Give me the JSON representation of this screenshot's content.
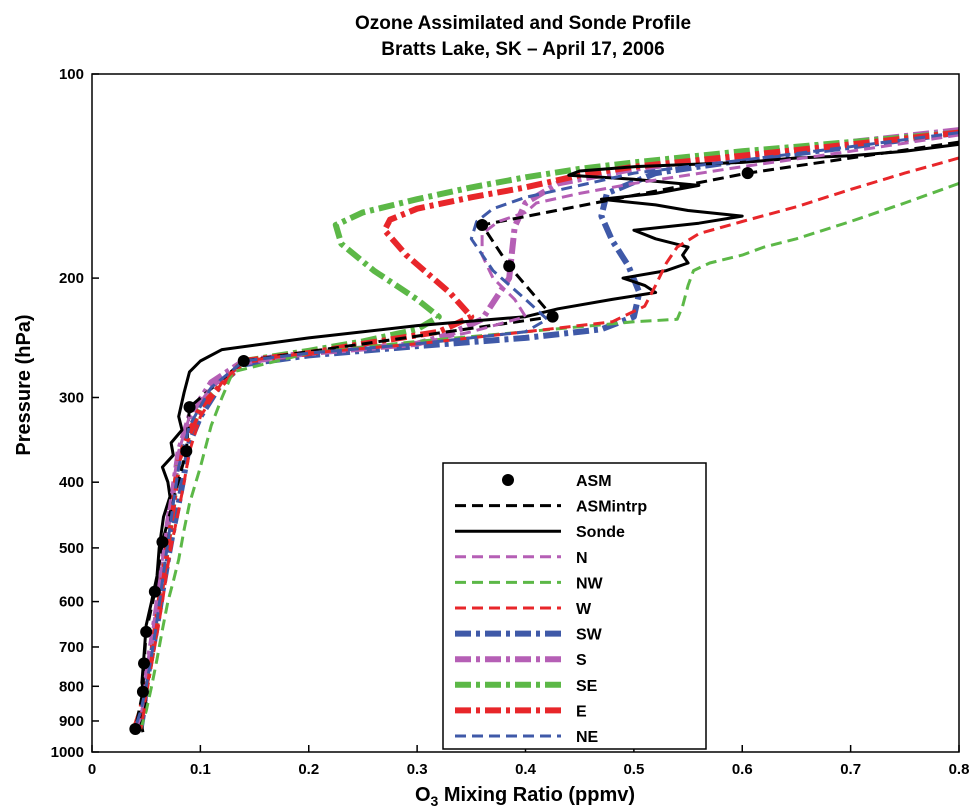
{
  "chart_data": {
    "type": "line",
    "title": "Ozone Assimilated and Sonde Profile",
    "subtitle": "Bratts Lake, SK – April 17, 2006",
    "xlabel_main": "O",
    "xlabel_sub": "3",
    "xlabel_rest": " Mixing Ratio (ppmv)",
    "ylabel": "Pressure (hPa)",
    "xlim": [
      0,
      0.8
    ],
    "ylim": [
      100,
      1000
    ],
    "y_scale": "log",
    "y_reversed": true,
    "grid": false,
    "legend_position": "lower-right",
    "x_ticks": [
      {
        "value": 0,
        "label": "0"
      },
      {
        "value": 0.1,
        "label": "0.1"
      },
      {
        "value": 0.2,
        "label": "0.2"
      },
      {
        "value": 0.3,
        "label": "0.3"
      },
      {
        "value": 0.4,
        "label": "0.4"
      },
      {
        "value": 0.5,
        "label": "0.5"
      },
      {
        "value": 0.6,
        "label": "0.6"
      },
      {
        "value": 0.7,
        "label": "0.7"
      },
      {
        "value": 0.8,
        "label": "0.8"
      }
    ],
    "y_ticks": [
      {
        "value": 100,
        "label": "100"
      },
      {
        "value": 200,
        "label": "200"
      },
      {
        "value": 300,
        "label": "300"
      },
      {
        "value": 400,
        "label": "400"
      },
      {
        "value": 500,
        "label": "500"
      },
      {
        "value": 600,
        "label": "600"
      },
      {
        "value": 700,
        "label": "700"
      },
      {
        "value": 800,
        "label": "800"
      },
      {
        "value": 900,
        "label": "900"
      },
      {
        "value": 1000,
        "label": "1000"
      }
    ],
    "series": [
      {
        "name": "ASM",
        "style": "marker",
        "color": "#000000",
        "x": [
          0.605,
          0.36,
          0.385,
          0.425,
          0.14,
          0.09,
          0.087,
          0.065,
          0.058,
          0.05,
          0.048,
          0.047,
          0.04
        ],
        "y": [
          140,
          167,
          192,
          228,
          265,
          310,
          360,
          490,
          580,
          665,
          740,
          815,
          925
        ]
      },
      {
        "name": "ASMintrp",
        "style": "dash",
        "color": "#000000",
        "width": 3,
        "x": [
          0.8,
          0.605,
          0.36,
          0.385,
          0.425,
          0.14,
          0.09,
          0.087,
          0.065,
          0.058,
          0.05,
          0.048,
          0.047,
          0.04
        ],
        "y": [
          126,
          140,
          167,
          192,
          228,
          265,
          310,
          360,
          490,
          580,
          665,
          740,
          815,
          925
        ]
      },
      {
        "name": "Sonde",
        "style": "solid",
        "color": "#000000",
        "width": 3,
        "x": [
          0.8,
          0.75,
          0.7,
          0.65,
          0.6,
          0.55,
          0.5,
          0.45,
          0.44,
          0.5,
          0.56,
          0.52,
          0.47,
          0.52,
          0.55,
          0.6,
          0.56,
          0.5,
          0.52,
          0.55,
          0.545,
          0.55,
          0.53,
          0.49,
          0.51,
          0.52,
          0.48,
          0.43,
          0.4,
          0.3,
          0.2,
          0.12,
          0.1,
          0.09,
          0.085,
          0.08,
          0.083,
          0.073,
          0.075,
          0.065,
          0.07,
          0.072,
          0.066,
          0.062,
          0.06,
          0.055,
          0.05,
          0.048,
          0.046,
          0.05,
          0.045,
          0.047
        ],
        "y": [
          127,
          130,
          132,
          133,
          135,
          136,
          137,
          139,
          141,
          143,
          146,
          150,
          153,
          156,
          159,
          162,
          166,
          170,
          175,
          180,
          185,
          190,
          195,
          200,
          205,
          210,
          215,
          222,
          228,
          235,
          245,
          255,
          265,
          275,
          295,
          320,
          335,
          350,
          365,
          380,
          400,
          420,
          450,
          500,
          550,
          600,
          650,
          720,
          790,
          850,
          900,
          935
        ]
      },
      {
        "name": "N",
        "style": "dash",
        "color": "#b55fb5",
        "width": 3,
        "x": [
          0.8,
          0.7,
          0.6,
          0.5,
          0.45,
          0.41,
          0.4,
          0.375,
          0.36,
          0.36,
          0.37,
          0.39,
          0.4,
          0.35,
          0.3,
          0.2,
          0.14,
          0.11,
          0.09,
          0.08,
          0.075,
          0.07,
          0.065,
          0.06,
          0.055,
          0.05,
          0.048,
          0.045,
          0.04
        ],
        "y": [
          123,
          130,
          137,
          145,
          150,
          155,
          160,
          165,
          172,
          185,
          200,
          215,
          228,
          240,
          250,
          258,
          268,
          290,
          320,
          360,
          400,
          450,
          520,
          600,
          680,
          760,
          830,
          890,
          925
        ]
      },
      {
        "name": "NW",
        "style": "dash",
        "color": "#5cb847",
        "width": 3,
        "x": [
          0.8,
          0.75,
          0.7,
          0.65,
          0.62,
          0.6,
          0.57,
          0.555,
          0.55,
          0.545,
          0.54,
          0.5,
          0.4,
          0.3,
          0.2,
          0.13,
          0.12,
          0.11,
          0.1,
          0.09,
          0.085,
          0.08,
          0.075,
          0.07,
          0.065,
          0.06,
          0.055,
          0.05,
          0.045
        ],
        "y": [
          145,
          155,
          165,
          175,
          180,
          185,
          190,
          195,
          205,
          220,
          230,
          232,
          240,
          248,
          258,
          275,
          300,
          330,
          380,
          430,
          470,
          520,
          560,
          600,
          660,
          730,
          800,
          870,
          925
        ]
      },
      {
        "name": "W",
        "style": "dash",
        "color": "#e8262a",
        "width": 3,
        "x": [
          0.8,
          0.75,
          0.7,
          0.65,
          0.6,
          0.56,
          0.54,
          0.53,
          0.52,
          0.51,
          0.48,
          0.4,
          0.3,
          0.2,
          0.14,
          0.12,
          0.1,
          0.09,
          0.085,
          0.08,
          0.075,
          0.07,
          0.065,
          0.06,
          0.055,
          0.05,
          0.048,
          0.045
        ],
        "y": [
          133,
          140,
          148,
          157,
          165,
          172,
          180,
          190,
          205,
          220,
          232,
          240,
          250,
          258,
          265,
          285,
          320,
          360,
          400,
          440,
          480,
          530,
          600,
          670,
          740,
          810,
          870,
          925
        ]
      },
      {
        "name": "SW",
        "style": "dashdot",
        "color": "#3f59a8",
        "width": 6,
        "x": [
          0.8,
          0.7,
          0.6,
          0.52,
          0.475,
          0.47,
          0.48,
          0.495,
          0.505,
          0.5,
          0.47,
          0.4,
          0.3,
          0.2,
          0.14,
          0.12,
          0.1,
          0.09,
          0.085,
          0.08,
          0.075,
          0.07,
          0.065,
          0.06,
          0.055,
          0.05,
          0.048,
          0.045
        ],
        "y": [
          122,
          128,
          134,
          140,
          150,
          162,
          176,
          192,
          210,
          228,
          238,
          245,
          252,
          260,
          268,
          285,
          320,
          350,
          390,
          430,
          470,
          520,
          580,
          650,
          720,
          790,
          860,
          920
        ]
      },
      {
        "name": "S",
        "style": "dashdot",
        "color": "#b55fb5",
        "width": 6,
        "x": [
          0.8,
          0.7,
          0.6,
          0.5,
          0.43,
          0.4,
          0.39,
          0.385,
          0.36,
          0.33,
          0.3,
          0.2,
          0.14,
          0.11,
          0.09,
          0.08,
          0.075,
          0.07,
          0.065,
          0.06,
          0.055,
          0.05,
          0.048,
          0.045
        ],
        "y": [
          121,
          126,
          132,
          138,
          145,
          155,
          168,
          200,
          230,
          242,
          250,
          258,
          265,
          285,
          320,
          360,
          410,
          460,
          530,
          610,
          690,
          770,
          840,
          910
        ]
      },
      {
        "name": "SE",
        "style": "dashdot",
        "color": "#5cb847",
        "width": 6,
        "x": [
          0.8,
          0.7,
          0.6,
          0.5,
          0.45,
          0.4,
          0.35,
          0.3,
          0.25,
          0.225,
          0.23,
          0.26,
          0.3,
          0.32,
          0.3,
          0.25,
          0.2,
          0.14,
          0.1,
          0.08,
          0.075,
          0.07,
          0.065,
          0.06,
          0.055,
          0.05,
          0.045,
          0.04
        ],
        "y": [
          122,
          126,
          130,
          135,
          138,
          142,
          147,
          153,
          160,
          167,
          178,
          195,
          215,
          228,
          238,
          248,
          256,
          265,
          310,
          370,
          430,
          490,
          560,
          640,
          720,
          800,
          870,
          920
        ]
      },
      {
        "name": "E",
        "style": "dashdot",
        "color": "#e8262a",
        "width": 6,
        "x": [
          0.8,
          0.7,
          0.6,
          0.5,
          0.45,
          0.4,
          0.35,
          0.3,
          0.275,
          0.27,
          0.29,
          0.33,
          0.35,
          0.32,
          0.25,
          0.2,
          0.14,
          0.1,
          0.08,
          0.075,
          0.07,
          0.065,
          0.06,
          0.055,
          0.05,
          0.045,
          0.04
        ],
        "y": [
          122,
          127,
          132,
          137,
          141,
          147,
          152,
          158,
          164,
          170,
          185,
          210,
          228,
          240,
          250,
          258,
          265,
          310,
          370,
          430,
          490,
          560,
          640,
          720,
          800,
          870,
          920
        ]
      },
      {
        "name": "NE",
        "style": "dash",
        "color": "#3f59a8",
        "width": 3,
        "x": [
          0.8,
          0.7,
          0.6,
          0.5,
          0.45,
          0.4,
          0.37,
          0.355,
          0.35,
          0.37,
          0.4,
          0.42,
          0.4,
          0.3,
          0.2,
          0.14,
          0.11,
          0.09,
          0.08,
          0.075,
          0.07,
          0.065,
          0.06,
          0.055,
          0.05,
          0.045,
          0.04
        ],
        "y": [
          122,
          128,
          134,
          140,
          146,
          152,
          158,
          165,
          175,
          195,
          215,
          230,
          240,
          250,
          258,
          265,
          290,
          330,
          380,
          430,
          490,
          560,
          640,
          720,
          800,
          870,
          920
        ]
      }
    ]
  }
}
